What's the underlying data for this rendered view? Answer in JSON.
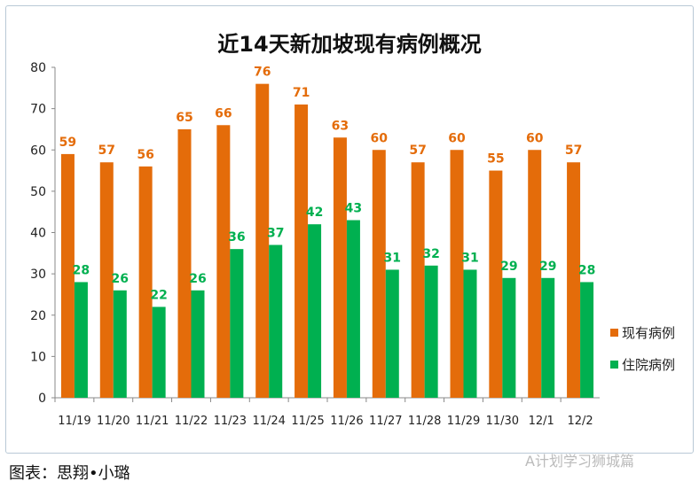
{
  "chart_data": {
    "type": "bar",
    "title": "近14天新加坡现有病例概况",
    "categories": [
      "11/19",
      "11/20",
      "11/21",
      "11/22",
      "11/23",
      "11/24",
      "11/25",
      "11/26",
      "11/27",
      "11/28",
      "11/29",
      "11/30",
      "12/1",
      "12/2"
    ],
    "series": [
      {
        "name": "现有病例",
        "color": "#e46c0a",
        "values": [
          59,
          57,
          56,
          65,
          66,
          76,
          71,
          63,
          60,
          57,
          60,
          55,
          60,
          57
        ]
      },
      {
        "name": "住院病例",
        "color": "#00b050",
        "values": [
          28,
          26,
          22,
          26,
          36,
          37,
          42,
          43,
          31,
          32,
          31,
          29,
          29,
          28
        ]
      }
    ],
    "ylim": [
      0,
      80
    ],
    "yticks": [
      0,
      10,
      20,
      30,
      40,
      50,
      60,
      70,
      80
    ],
    "grid": false,
    "legend": "right",
    "data_labels": true
  },
  "footer": "图表：思翔•小璐",
  "watermark": "A计划学习狮城篇"
}
